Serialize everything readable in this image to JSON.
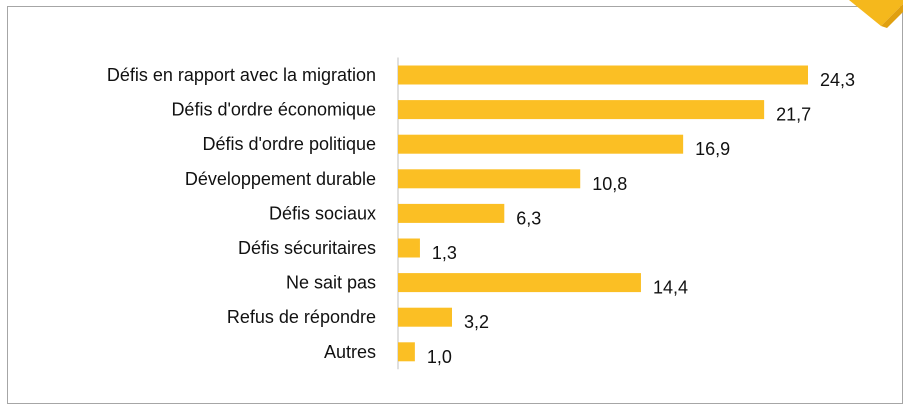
{
  "caption": "",
  "chart_data": {
    "type": "bar",
    "orientation": "horizontal",
    "title": "",
    "xlabel": "",
    "ylabel": "",
    "categories": [
      "Défis en rapport avec la migration",
      "Défis d'ordre économique",
      "Défis d'ordre politique",
      "Développement durable",
      "Défis sociaux",
      "Défis sécuritaires",
      "Ne sait pas",
      "Refus de répondre",
      "Autres"
    ],
    "values": [
      24.3,
      21.7,
      16.9,
      10.8,
      6.3,
      1.3,
      14.4,
      3.2,
      1.0
    ],
    "value_labels": [
      "24,3",
      "21,7",
      "16,9",
      "10,8",
      "6,3",
      "1,3",
      "14,4",
      "3,2",
      "1,0"
    ],
    "xlim": [
      0,
      24.3
    ],
    "grid": false,
    "legend": "none",
    "bar_color": "#fbbf24"
  },
  "colors": {
    "bar": "#fbbf24",
    "axis": "#bfbfbf",
    "frame": "#a6a6a6",
    "accent": "#f5b81c"
  }
}
